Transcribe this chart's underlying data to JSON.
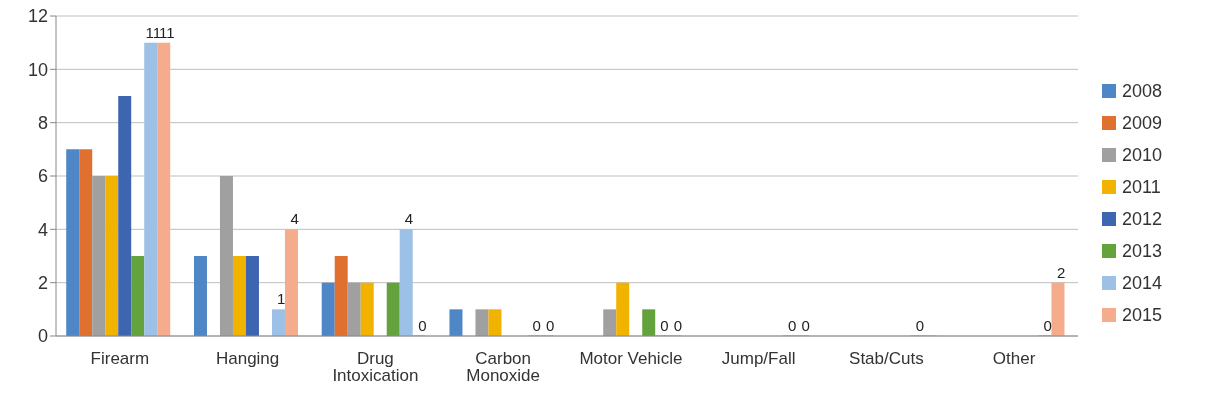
{
  "chart_data": {
    "type": "bar",
    "categories": [
      "Firearm",
      "Hanging",
      "Drug Intoxication",
      "Carbon Monoxide",
      "Motor Vehicle",
      "Jump/Fall",
      "Stab/Cuts",
      "Other"
    ],
    "series": [
      {
        "name": "2008",
        "color": "#4e86c6",
        "values": [
          7,
          3,
          2,
          1,
          0,
          0,
          0,
          0
        ]
      },
      {
        "name": "2009",
        "color": "#e07030",
        "values": [
          7,
          0,
          3,
          0,
          0,
          0,
          0,
          0
        ]
      },
      {
        "name": "2010",
        "color": "#a0a0a0",
        "values": [
          6,
          6,
          2,
          1,
          1,
          0,
          0,
          0
        ]
      },
      {
        "name": "2011",
        "color": "#f2b200",
        "values": [
          6,
          3,
          2,
          1,
          2,
          0,
          0,
          0
        ]
      },
      {
        "name": "2012",
        "color": "#3e66b0",
        "values": [
          9,
          3,
          0,
          0,
          0,
          0,
          0,
          0
        ]
      },
      {
        "name": "2013",
        "color": "#64a23e",
        "values": [
          3,
          0,
          2,
          0,
          1,
          0,
          0,
          0
        ]
      },
      {
        "name": "2014",
        "color": "#9dc0e6",
        "values": [
          11,
          1,
          4,
          0,
          0,
          0,
          0,
          0
        ],
        "value_labels": [
          "11",
          "1",
          "4",
          "0",
          "0",
          "0",
          "0",
          "0"
        ]
      },
      {
        "name": "2015",
        "color": "#f4ac8c",
        "values": [
          11,
          4,
          0,
          0,
          0,
          0,
          0,
          2
        ],
        "value_labels": [
          "11",
          "4",
          "0",
          "0",
          "0",
          "0",
          null,
          "2"
        ]
      }
    ],
    "ylim": [
      0,
      12
    ],
    "yticks": [
      0,
      2,
      4,
      6,
      8,
      10,
      12
    ],
    "grid": "y",
    "legend": "right"
  }
}
